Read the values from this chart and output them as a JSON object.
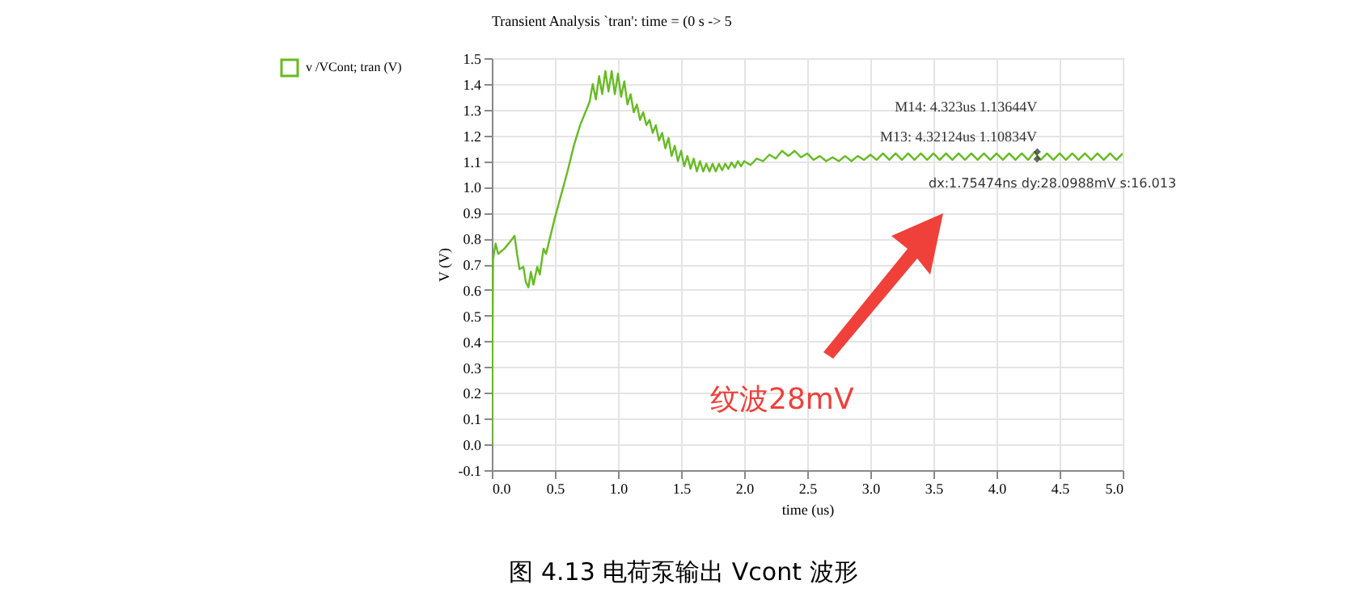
{
  "chart_data": {
    "type": "line",
    "title": "Transient Analysis `tran': time = (0 s -> 5",
    "xlabel": "time (us)",
    "ylabel": "V (V)",
    "x": [
      0,
      0.005,
      0.01,
      0.03,
      0.05,
      0.1,
      0.15,
      0.18,
      0.2,
      0.22,
      0.25,
      0.27,
      0.29,
      0.31,
      0.33,
      0.36,
      0.38,
      0.41,
      0.43,
      0.46,
      0.5,
      0.55,
      0.6,
      0.65,
      0.7,
      0.75,
      0.775,
      0.8,
      0.825,
      0.85,
      0.875,
      0.9,
      0.925,
      0.95,
      0.975,
      1.0,
      1.025,
      1.05,
      1.075,
      1.1,
      1.125,
      1.15,
      1.175,
      1.2,
      1.225,
      1.25,
      1.275,
      1.3,
      1.325,
      1.35,
      1.375,
      1.4,
      1.425,
      1.45,
      1.475,
      1.5,
      1.525,
      1.55,
      1.575,
      1.6,
      1.625,
      1.65,
      1.675,
      1.7,
      1.725,
      1.75,
      1.775,
      1.8,
      1.825,
      1.85,
      1.875,
      1.9,
      1.925,
      1.95,
      1.975,
      2.0,
      2.05,
      2.1,
      2.15,
      2.2,
      2.25,
      2.3,
      2.35,
      2.4,
      2.45,
      2.5,
      2.55,
      2.6,
      2.65,
      2.7,
      2.75,
      2.8,
      2.85,
      2.9,
      2.95,
      3.0,
      3.05,
      3.1,
      3.15,
      3.2,
      3.25,
      3.3,
      3.35,
      3.4,
      3.45,
      3.5,
      3.55,
      3.6,
      3.65,
      3.7,
      3.75,
      3.8,
      3.85,
      3.9,
      3.95,
      4.0,
      4.05,
      4.1,
      4.15,
      4.2,
      4.25,
      4.3,
      4.35,
      4.4,
      4.45,
      4.5,
      4.55,
      4.6,
      4.65,
      4.7,
      4.75,
      4.8,
      4.85,
      4.9,
      4.95,
      5.0
    ],
    "series": [
      {
        "name": "v /VCont; tran (V)",
        "color": "#66bb22",
        "values": [
          0,
          0.35,
          0.72,
          0.78,
          0.74,
          0.76,
          0.79,
          0.81,
          0.74,
          0.68,
          0.69,
          0.63,
          0.61,
          0.67,
          0.62,
          0.69,
          0.66,
          0.76,
          0.74,
          0.8,
          0.88,
          0.97,
          1.06,
          1.16,
          1.24,
          1.3,
          1.33,
          1.4,
          1.34,
          1.43,
          1.36,
          1.45,
          1.37,
          1.45,
          1.36,
          1.44,
          1.35,
          1.41,
          1.32,
          1.36,
          1.29,
          1.32,
          1.26,
          1.29,
          1.24,
          1.26,
          1.21,
          1.24,
          1.18,
          1.21,
          1.15,
          1.19,
          1.12,
          1.16,
          1.1,
          1.14,
          1.08,
          1.12,
          1.07,
          1.11,
          1.06,
          1.1,
          1.06,
          1.09,
          1.06,
          1.09,
          1.06,
          1.09,
          1.065,
          1.09,
          1.07,
          1.095,
          1.075,
          1.1,
          1.08,
          1.1,
          1.085,
          1.11,
          1.1,
          1.125,
          1.11,
          1.14,
          1.12,
          1.14,
          1.115,
          1.13,
          1.105,
          1.12,
          1.1,
          1.115,
          1.1,
          1.12,
          1.1,
          1.12,
          1.105,
          1.125,
          1.105,
          1.13,
          1.105,
          1.13,
          1.105,
          1.13,
          1.105,
          1.13,
          1.105,
          1.13,
          1.105,
          1.13,
          1.105,
          1.13,
          1.105,
          1.13,
          1.105,
          1.13,
          1.105,
          1.13,
          1.105,
          1.13,
          1.105,
          1.13,
          1.105,
          1.135,
          1.105,
          1.13,
          1.105,
          1.13,
          1.105,
          1.13,
          1.105,
          1.13,
          1.105,
          1.13,
          1.105,
          1.13,
          1.105,
          1.13
        ]
      }
    ],
    "xlim": [
      0,
      5
    ],
    "xticks": [
      {
        "value": 0,
        "label": "0.0"
      },
      0.5,
      {
        "value": 1,
        "label": "1.0"
      },
      1.5,
      {
        "value": 2,
        "label": "2.0"
      },
      2.5,
      {
        "value": 3,
        "label": "3.0"
      },
      3.5,
      {
        "value": 4,
        "label": "4.0"
      },
      4.5,
      {
        "value": 5,
        "label": "5.0"
      }
    ],
    "ylim": [
      -0.1,
      1.5
    ],
    "yticks": [
      -0.1,
      {
        "value": 0,
        "label": "0.0"
      },
      0.1,
      0.2,
      0.3,
      0.4,
      0.5,
      0.6,
      0.7,
      0.8,
      0.9,
      {
        "value": 1,
        "label": "1.0"
      },
      1.1,
      1.2,
      1.3,
      1.4,
      1.5
    ],
    "grid": true,
    "legend": "left",
    "annotations": [
      {
        "text": "M14: 4.323us 1.13644V",
        "x": 4.323,
        "y": 1.13644
      },
      {
        "text": "M13: 4.32124us 1.10834V",
        "x": 4.32124,
        "y": 1.10834
      },
      "dx:1.75474ns dy:28.0988mV s:16.013",
      "纹波28mV",
      "图 4.13 电荷泵输出 Vcont 波形"
    ]
  }
}
